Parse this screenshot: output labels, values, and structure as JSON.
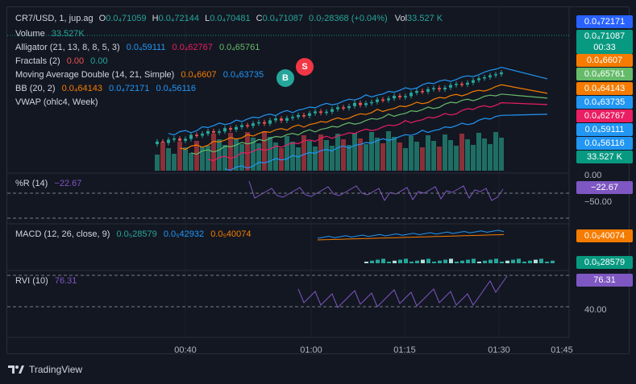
{
  "symbol": {
    "name": "CR7/USD, 1, jup.ag",
    "o_label": "O",
    "o_value": "0.0₄71059",
    "h_label": "H",
    "h_value": "0.0₄72144",
    "l_label": "L",
    "l_value": "0.0₄70481",
    "c_label": "C",
    "c_value": "0.0₄71087",
    "change": "0.0₇28368 (+0.04%)",
    "vol_label": "Vol",
    "vol_value": "33.527 K"
  },
  "indicators": {
    "volume": {
      "label": "Volume",
      "value": "33.527K"
    },
    "alligator": {
      "label": "Alligator (21, 13, 8, 8, 5, 3)",
      "v1": "0.0₄59111",
      "v2": "0.0₄62767",
      "v3": "0.0₄65761"
    },
    "fractals": {
      "label": "Fractals (2)",
      "v1": "0.00",
      "v2": "0.00"
    },
    "ma_double": {
      "label": "Moving Average Double (14, 21, Simple)",
      "v1": "0.0₄6607",
      "v2": "0.0₄63735"
    },
    "bb": {
      "label": "BB (20, 2)",
      "v1": "0.0₄64143",
      "v2": "0.0₄72171",
      "v3": "0.0₄56116"
    },
    "vwap": {
      "label": "VWAP (ohlc4, Week)"
    },
    "wr": {
      "label": "%R (14)",
      "value": "−22.67"
    },
    "macd": {
      "label": "MACD (12, 26, close, 9)",
      "v1": "0.0₅28579",
      "v2": "0.0₅42932",
      "v3": "0.0₅40074"
    },
    "rvi": {
      "label": "RVI (10)",
      "value": "76.31"
    }
  },
  "price_tags": [
    {
      "text": "0.0₄72171",
      "color": "#2962ff"
    },
    {
      "text": "0.0₄71087",
      "color": "#089981"
    },
    {
      "text": "00:33",
      "color": "#089981"
    },
    {
      "text": "0.0₄6607",
      "color": "#f57c00"
    },
    {
      "text": "0.0₄65761",
      "color": "#66bb6a"
    },
    {
      "text": "0.0₄64143",
      "color": "#f57c00"
    },
    {
      "text": "0.0₄63735",
      "color": "#2196f3"
    },
    {
      "text": "0.0₄62767",
      "color": "#e91e63"
    },
    {
      "text": "0.0₄59111",
      "color": "#2196f3"
    },
    {
      "text": "0.0₄56116",
      "color": "#2196f3"
    },
    {
      "text": "33.527 K",
      "color": "#089981"
    }
  ],
  "wr_scale": {
    "top": "0.00",
    "tag": "−22.67",
    "bottom": "−50.00"
  },
  "macd_tags": {
    "signal": "0.0₅40074",
    "hist": "0.0₅28579"
  },
  "rvi_scale": {
    "tag": "76.31",
    "level": "40.00"
  },
  "time_axis": [
    "00:40",
    "01:00",
    "01:15",
    "01:30",
    "01:45"
  ],
  "signals": {
    "buy": "B",
    "sell": "S"
  },
  "footer": {
    "brand": "TradingView"
  },
  "colors": {
    "up": "#26a69a",
    "down": "#ef5350",
    "vol_up": "#1e6e64",
    "vol_down": "#8b2f38"
  }
}
